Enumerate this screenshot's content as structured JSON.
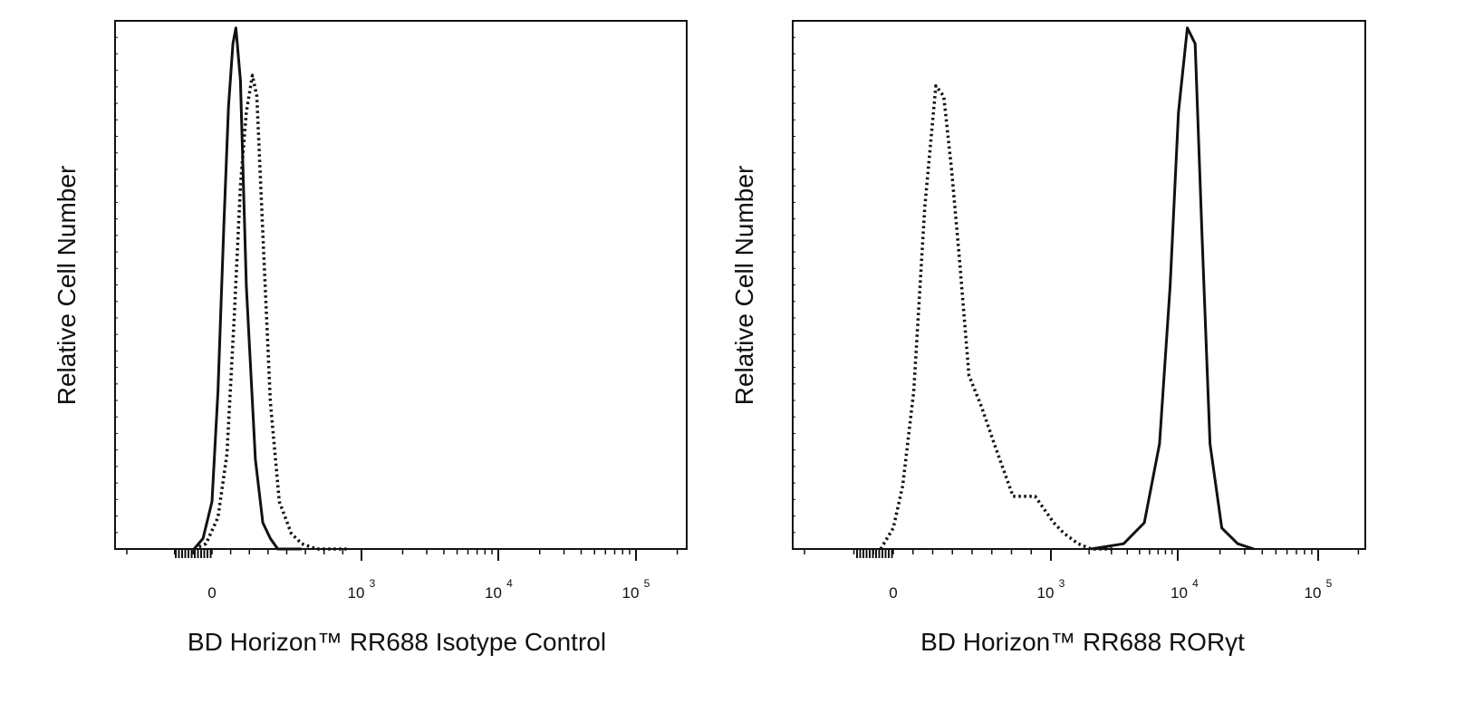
{
  "colors": {
    "line": "#111111",
    "axis": "#111111",
    "background": "#ffffff"
  },
  "chart_data": [
    {
      "type": "line",
      "title": "",
      "xlabel": "BD Horizon™ RR688 Isotype Control",
      "ylabel": "Relative Cell Number",
      "x_scale": "biexponential",
      "xlim": [
        -200,
        200000
      ],
      "ylim": [
        0,
        1
      ],
      "grid": false,
      "legend": "none",
      "x_ticks": [
        {
          "value": 0,
          "base": "0",
          "exp": ""
        },
        {
          "value": 1000,
          "base": "10",
          "exp": "3"
        },
        {
          "value": 10000,
          "base": "10",
          "exp": "4"
        },
        {
          "value": 100000,
          "base": "10",
          "exp": "5"
        }
      ],
      "series": [
        {
          "style": "solid",
          "x": [
            -120,
            -60,
            0,
            40,
            80,
            110,
            140,
            160,
            190,
            230,
            290,
            340,
            390,
            440,
            500,
            600
          ],
          "y": [
            0,
            0.02,
            0.09,
            0.3,
            0.62,
            0.84,
            0.96,
            0.99,
            0.89,
            0.5,
            0.17,
            0.05,
            0.02,
            0.0,
            0.0,
            0.0
          ]
        },
        {
          "style": "dotted",
          "x": [
            -120,
            -40,
            40,
            100,
            150,
            190,
            230,
            270,
            300,
            340,
            390,
            450,
            530,
            600,
            700,
            900
          ],
          "y": [
            0,
            0.01,
            0.06,
            0.18,
            0.45,
            0.69,
            0.83,
            0.9,
            0.86,
            0.6,
            0.28,
            0.09,
            0.03,
            0.01,
            0.0,
            0.0
          ]
        }
      ]
    },
    {
      "type": "line",
      "title": "",
      "xlabel": "BD Horizon™ RR688 RORγt",
      "ylabel": "Relative Cell Number",
      "x_scale": "biexponential",
      "xlim": [
        -200,
        200000
      ],
      "ylim": [
        0,
        1
      ],
      "grid": false,
      "legend": "none",
      "x_ticks": [
        {
          "value": 0,
          "base": "0",
          "exp": ""
        },
        {
          "value": 1000,
          "base": "10",
          "exp": "3"
        },
        {
          "value": 10000,
          "base": "10",
          "exp": "4"
        },
        {
          "value": 100000,
          "base": "10",
          "exp": "5"
        }
      ],
      "series": [
        {
          "style": "dotted",
          "x": [
            -80,
            0,
            60,
            130,
            200,
            270,
            320,
            370,
            420,
            480,
            560,
            640,
            760,
            900,
            1050,
            1250,
            1600,
            2000,
            3000
          ],
          "y": [
            0,
            0.04,
            0.12,
            0.3,
            0.65,
            0.88,
            0.86,
            0.72,
            0.55,
            0.33,
            0.27,
            0.2,
            0.1,
            0.1,
            0.05,
            0.03,
            0.01,
            0.0,
            0.0
          ]
        },
        {
          "style": "solid",
          "x": [
            2000,
            3500,
            5000,
            6500,
            7800,
            9000,
            10500,
            12000,
            13500,
            15500,
            19000,
            25000,
            33000
          ],
          "y": [
            0,
            0.01,
            0.05,
            0.2,
            0.5,
            0.83,
            0.99,
            0.96,
            0.6,
            0.2,
            0.04,
            0.01,
            0.0
          ]
        }
      ]
    }
  ]
}
